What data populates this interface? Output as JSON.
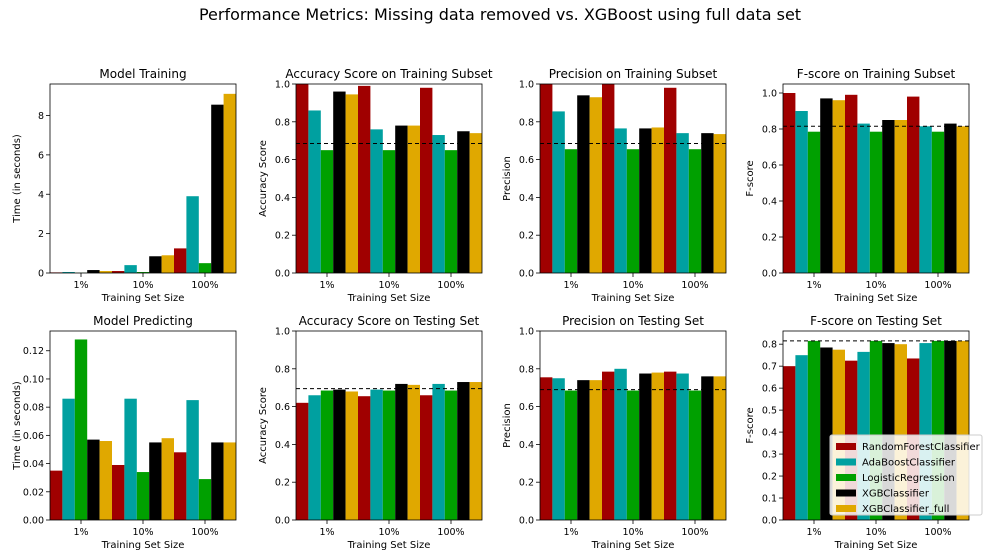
{
  "suptitle": "Performance Metrics: Missing data removed vs. XGBoost using full data set",
  "colors": {
    "RandomForestClassifier": "#a00000",
    "AdaBoostClassifier": "#00a0a0",
    "LogisticRegression": "#00a000",
    "XGBClassifier": "#000000",
    "XGBClassifier_full": "#e0a800"
  },
  "legend": {
    "placement": "lower-right of last panel",
    "entries": [
      "RandomForestClassifier",
      "AdaBoostClassifier",
      "LogisticRegression",
      "XGBClassifier",
      "XGBClassifier_full"
    ]
  },
  "chart_data": [
    {
      "type": "bar",
      "title": "Model Training",
      "xlabel": "Training Set Size",
      "ylabel": "Time (in seconds)",
      "categories": [
        "1%",
        "10%",
        "100%"
      ],
      "ylim": [
        0,
        9.6
      ],
      "yticks": [
        0,
        2,
        4,
        6,
        8
      ],
      "baseline": null,
      "series": [
        {
          "name": "RandomForestClassifier",
          "values": [
            0.03,
            0.1,
            1.25
          ]
        },
        {
          "name": "AdaBoostClassifier",
          "values": [
            0.05,
            0.4,
            3.9
          ]
        },
        {
          "name": "LogisticRegression",
          "values": [
            0.01,
            0.05,
            0.5
          ]
        },
        {
          "name": "XGBClassifier",
          "values": [
            0.15,
            0.85,
            8.55
          ]
        },
        {
          "name": "XGBClassifier_full",
          "values": [
            0.1,
            0.9,
            9.1
          ]
        }
      ]
    },
    {
      "type": "bar",
      "title": "Accuracy Score on Training Subset",
      "xlabel": "Training Set Size",
      "ylabel": "Accuracy Score",
      "categories": [
        "1%",
        "10%",
        "100%"
      ],
      "ylim": [
        0,
        1.0
      ],
      "yticks": [
        0.0,
        0.2,
        0.4,
        0.6,
        0.8,
        1.0
      ],
      "baseline": 0.685,
      "series": [
        {
          "name": "RandomForestClassifier",
          "values": [
            1.0,
            0.99,
            0.98
          ]
        },
        {
          "name": "AdaBoostClassifier",
          "values": [
            0.86,
            0.76,
            0.73
          ]
        },
        {
          "name": "LogisticRegression",
          "values": [
            0.65,
            0.65,
            0.65
          ]
        },
        {
          "name": "XGBClassifier",
          "values": [
            0.96,
            0.78,
            0.75
          ]
        },
        {
          "name": "XGBClassifier_full",
          "values": [
            0.945,
            0.78,
            0.74
          ]
        }
      ]
    },
    {
      "type": "bar",
      "title": "Precision on Training Subset",
      "xlabel": "Training Set Size",
      "ylabel": "Precision",
      "categories": [
        "1%",
        "10%",
        "100%"
      ],
      "ylim": [
        0,
        1.0
      ],
      "yticks": [
        0.0,
        0.2,
        0.4,
        0.6,
        0.8,
        1.0
      ],
      "baseline": 0.685,
      "series": [
        {
          "name": "RandomForestClassifier",
          "values": [
            1.0,
            1.0,
            0.98
          ]
        },
        {
          "name": "AdaBoostClassifier",
          "values": [
            0.855,
            0.765,
            0.74
          ]
        },
        {
          "name": "LogisticRegression",
          "values": [
            0.655,
            0.655,
            0.655
          ]
        },
        {
          "name": "XGBClassifier",
          "values": [
            0.94,
            0.765,
            0.74
          ]
        },
        {
          "name": "XGBClassifier_full",
          "values": [
            0.93,
            0.77,
            0.735
          ]
        }
      ]
    },
    {
      "type": "bar",
      "title": "F-score on Training Subset",
      "xlabel": "Training Set Size",
      "ylabel": "F-score",
      "categories": [
        "1%",
        "10%",
        "100%"
      ],
      "ylim": [
        0,
        1.05
      ],
      "yticks": [
        0.0,
        0.2,
        0.4,
        0.6,
        0.8,
        1.0
      ],
      "baseline": 0.815,
      "series": [
        {
          "name": "RandomForestClassifier",
          "values": [
            1.0,
            0.99,
            0.98
          ]
        },
        {
          "name": "AdaBoostClassifier",
          "values": [
            0.9,
            0.83,
            0.815
          ]
        },
        {
          "name": "LogisticRegression",
          "values": [
            0.785,
            0.785,
            0.785
          ]
        },
        {
          "name": "XGBClassifier",
          "values": [
            0.97,
            0.85,
            0.83
          ]
        },
        {
          "name": "XGBClassifier_full",
          "values": [
            0.96,
            0.85,
            0.815
          ]
        }
      ]
    },
    {
      "type": "bar",
      "title": "Model Predicting",
      "xlabel": "Training Set Size",
      "ylabel": "Time (in seconds)",
      "categories": [
        "1%",
        "10%",
        "100%"
      ],
      "ylim": [
        0,
        0.134
      ],
      "yticks": [
        0.0,
        0.02,
        0.04,
        0.06,
        0.08,
        0.1,
        0.12
      ],
      "baseline": null,
      "series": [
        {
          "name": "RandomForestClassifier",
          "values": [
            0.035,
            0.039,
            0.048
          ]
        },
        {
          "name": "AdaBoostClassifier",
          "values": [
            0.086,
            0.086,
            0.085
          ]
        },
        {
          "name": "LogisticRegression",
          "values": [
            0.128,
            0.034,
            0.029
          ]
        },
        {
          "name": "XGBClassifier",
          "values": [
            0.057,
            0.055,
            0.055
          ]
        },
        {
          "name": "XGBClassifier_full",
          "values": [
            0.056,
            0.058,
            0.055
          ]
        }
      ]
    },
    {
      "type": "bar",
      "title": "Accuracy Score on Testing Set",
      "xlabel": "Training Set Size",
      "ylabel": "Accuracy Score",
      "categories": [
        "1%",
        "10%",
        "100%"
      ],
      "ylim": [
        0,
        1.0
      ],
      "yticks": [
        0.0,
        0.2,
        0.4,
        0.6,
        0.8,
        1.0
      ],
      "baseline": 0.695,
      "series": [
        {
          "name": "RandomForestClassifier",
          "values": [
            0.62,
            0.655,
            0.66
          ]
        },
        {
          "name": "AdaBoostClassifier",
          "values": [
            0.66,
            0.69,
            0.72
          ]
        },
        {
          "name": "LogisticRegression",
          "values": [
            0.685,
            0.685,
            0.685
          ]
        },
        {
          "name": "XGBClassifier",
          "values": [
            0.69,
            0.72,
            0.73
          ]
        },
        {
          "name": "XGBClassifier_full",
          "values": [
            0.68,
            0.715,
            0.73
          ]
        }
      ]
    },
    {
      "type": "bar",
      "title": "Precision on Testing Set",
      "xlabel": "Training Set Size",
      "ylabel": "Precision",
      "categories": [
        "1%",
        "10%",
        "100%"
      ],
      "ylim": [
        0,
        1.0
      ],
      "yticks": [
        0.0,
        0.2,
        0.4,
        0.6,
        0.8,
        1.0
      ],
      "baseline": 0.69,
      "series": [
        {
          "name": "RandomForestClassifier",
          "values": [
            0.755,
            0.785,
            0.785
          ]
        },
        {
          "name": "AdaBoostClassifier",
          "values": [
            0.75,
            0.8,
            0.775
          ]
        },
        {
          "name": "LogisticRegression",
          "values": [
            0.685,
            0.685,
            0.685
          ]
        },
        {
          "name": "XGBClassifier",
          "values": [
            0.74,
            0.775,
            0.76
          ]
        },
        {
          "name": "XGBClassifier_full",
          "values": [
            0.74,
            0.78,
            0.76
          ]
        }
      ]
    },
    {
      "type": "bar",
      "title": "F-score on Testing Set",
      "xlabel": "Training Set Size",
      "ylabel": "F-score",
      "categories": [
        "1%",
        "10%",
        "100%"
      ],
      "ylim": [
        0,
        0.86
      ],
      "yticks": [
        0.0,
        0.1,
        0.2,
        0.3,
        0.4,
        0.5,
        0.6,
        0.7,
        0.8
      ],
      "baseline": 0.815,
      "series": [
        {
          "name": "RandomForestClassifier",
          "values": [
            0.7,
            0.725,
            0.735
          ]
        },
        {
          "name": "AdaBoostClassifier",
          "values": [
            0.75,
            0.765,
            0.805
          ]
        },
        {
          "name": "LogisticRegression",
          "values": [
            0.815,
            0.815,
            0.815
          ]
        },
        {
          "name": "XGBClassifier",
          "values": [
            0.785,
            0.805,
            0.815
          ]
        },
        {
          "name": "XGBClassifier_full",
          "values": [
            0.775,
            0.8,
            0.815
          ]
        }
      ]
    }
  ]
}
